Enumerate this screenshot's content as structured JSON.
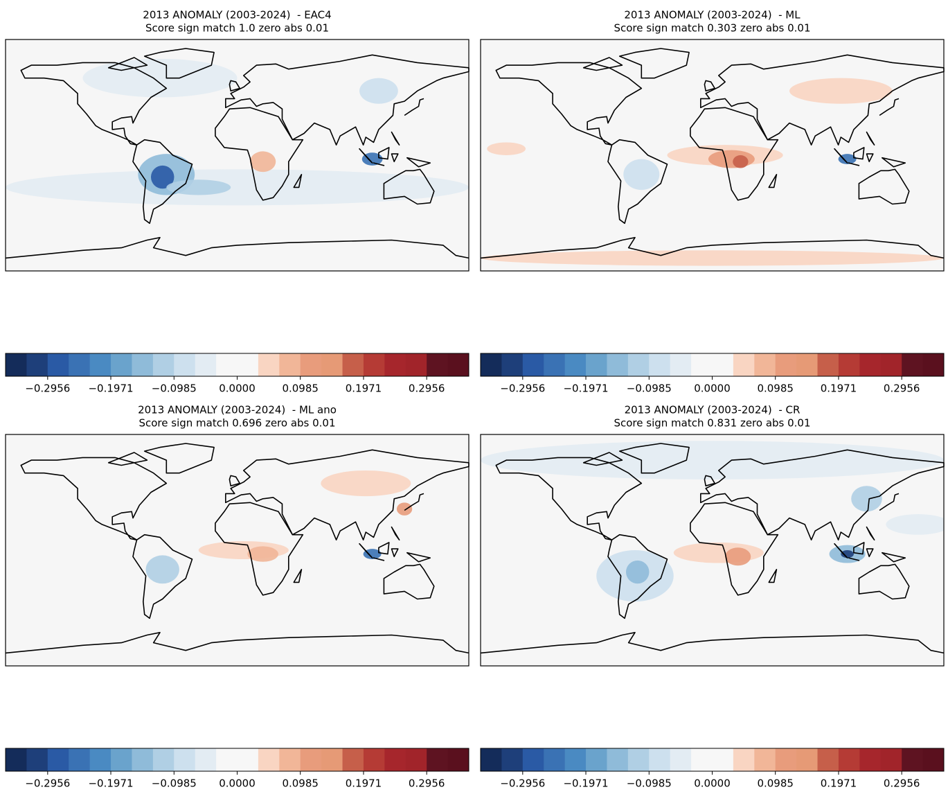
{
  "panels": [
    {
      "title": "2013 ANOMALY (2003-2024)  - EAC4",
      "subtitle": "Score sign match 1.0 zero abs 0.01"
    },
    {
      "title": "2013 ANOMALY (2003-2024)  - ML",
      "subtitle": "Score sign match 0.303 zero abs 0.01"
    },
    {
      "title": "2013 ANOMALY (2003-2024)  - ML ano",
      "subtitle": "Score sign match 0.696 zero abs 0.01"
    },
    {
      "title": "2013 ANOMALY (2003-2024)  - CR",
      "subtitle": "Score sign match 0.831 zero abs 0.01"
    }
  ],
  "colorbar": {
    "lim": [
      -0.3613,
      0.3613
    ],
    "ticks": [
      {
        "value": -0.2956,
        "label": "−0.2956"
      },
      {
        "value": -0.1971,
        "label": "−0.1971"
      },
      {
        "value": -0.0985,
        "label": "−0.0985"
      },
      {
        "value": 0,
        "label": "0.0000"
      },
      0.0985,
      0.1971,
      0.2956
    ],
    "colors": [
      "#142c5a",
      "#1e3f7a",
      "#2a5aa5",
      "#3a72b4",
      "#4a8ac2",
      "#6aa3cc",
      "#8fbbd9",
      "#b0cfe4",
      "#cde0ee",
      "#e3ecf3",
      "#f7f7f7",
      "#f7f7f7",
      "#f9d5c2",
      "#f1b698",
      "#e89c7c",
      "#e69a76",
      "#c65f4a",
      "#b53b35",
      "#a6262c",
      "#a1242a",
      "#5e1321",
      "#5a101e"
    ]
  }
}
